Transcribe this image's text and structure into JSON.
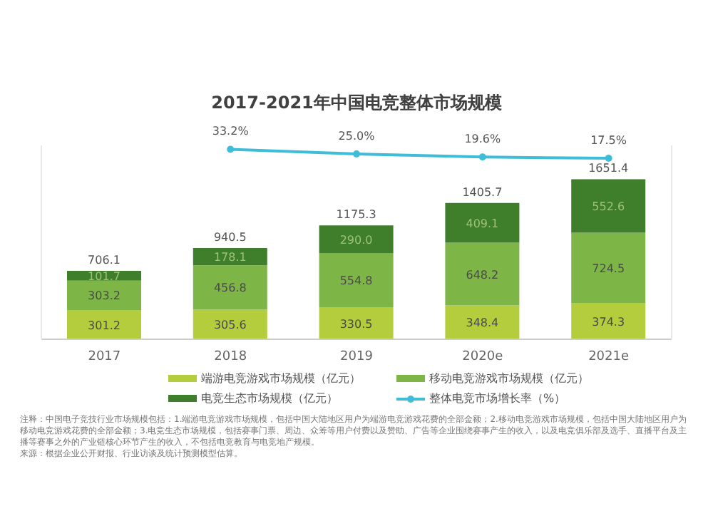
{
  "chart_data": {
    "type": "bar",
    "title": "2017-2021年中国电竞整体市场规模",
    "categories": [
      "2017",
      "2018",
      "2019",
      "2020e",
      "2021e"
    ],
    "stacked": true,
    "ylim": [
      0,
      2000
    ],
    "y2lim": [
      -300,
      40
    ],
    "tick_labels": "x",
    "legend": "bottom",
    "marker": "circle",
    "grid": false,
    "series": [
      {
        "name": "端游电竞游戏市场规模（亿元）",
        "color": "#b3cd3c",
        "values": [
          301.2,
          305.6,
          330.5,
          348.4,
          374.3
        ],
        "value_labels": [
          "301.2",
          "305.6",
          "330.5",
          "348.4",
          "374.3"
        ]
      },
      {
        "name": "移动电竞游戏市场规模（亿元）",
        "color": "#7db646",
        "values": [
          303.2,
          456.8,
          554.8,
          648.2,
          724.5
        ],
        "value_labels": [
          "303.2",
          "456.8",
          "554.8",
          "648.2",
          "724.5"
        ]
      },
      {
        "name": "电竞生态市场规模（亿元）",
        "color": "#3f7f2c",
        "values": [
          101.7,
          178.1,
          290.0,
          409.1,
          552.6
        ],
        "value_labels": [
          "101.7",
          "178.1",
          "290.0",
          "409.1",
          "552.6"
        ]
      },
      {
        "name": "整体电竞市场增长率（%）",
        "type": "line",
        "axis": "y2",
        "color": "#3fbcd8",
        "values": [
          null,
          33.2,
          25.0,
          19.6,
          17.5
        ],
        "value_labels": [
          null,
          "33.2%",
          "25.0%",
          "19.6%",
          "17.5%"
        ]
      }
    ],
    "totals": [
      "706.1",
      "940.5",
      "1175.3",
      "1405.7",
      "1651.4"
    ],
    "annotations": [
      "注释：中国电子竞技行业市场规模包括：1.端游电竞游戏市场规模，包括中国大陆地区用户为端游电竞游戏花费的全部金额；2.移动电竞游戏市场规模，包括中国大陆地区用户为移动电竞游戏花费的全部金额；3.电竞生态市场规模，包括赛事门票、周边、众筹等用户付费以及赞助、广告等企业围绕赛事产生的收入，以及电竞俱乐部及选手、直播平台及主播等赛事之外的产业链核心环节产生的收入，不包括电竞教育与电竞地产规模。",
      "来源：根据企业公开财报、行业访谈及统计预测模型估算。"
    ]
  }
}
